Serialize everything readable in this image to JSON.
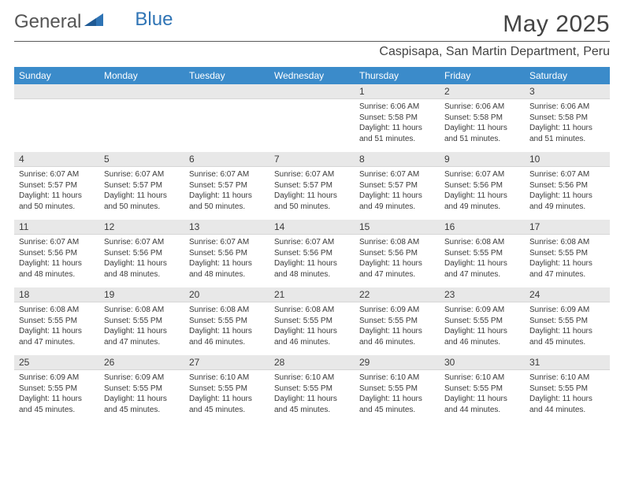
{
  "brand": {
    "part1": "General",
    "part2": "Blue"
  },
  "title": "May 2025",
  "location": "Caspisapa, San Martin Department, Peru",
  "colors": {
    "header_bg": "#3b8bca",
    "header_text": "#ffffff",
    "daynum_bg": "#e8e8e8",
    "text": "#3a3a3a",
    "rule": "#5a5a5a",
    "brand_blue": "#2f74b5"
  },
  "day_headers": [
    "Sunday",
    "Monday",
    "Tuesday",
    "Wednesday",
    "Thursday",
    "Friday",
    "Saturday"
  ],
  "weeks": [
    [
      null,
      null,
      null,
      null,
      {
        "n": "1",
        "sr": "6:06 AM",
        "ss": "5:58 PM",
        "dl": "11 hours and 51 minutes."
      },
      {
        "n": "2",
        "sr": "6:06 AM",
        "ss": "5:58 PM",
        "dl": "11 hours and 51 minutes."
      },
      {
        "n": "3",
        "sr": "6:06 AM",
        "ss": "5:58 PM",
        "dl": "11 hours and 51 minutes."
      }
    ],
    [
      {
        "n": "4",
        "sr": "6:07 AM",
        "ss": "5:57 PM",
        "dl": "11 hours and 50 minutes."
      },
      {
        "n": "5",
        "sr": "6:07 AM",
        "ss": "5:57 PM",
        "dl": "11 hours and 50 minutes."
      },
      {
        "n": "6",
        "sr": "6:07 AM",
        "ss": "5:57 PM",
        "dl": "11 hours and 50 minutes."
      },
      {
        "n": "7",
        "sr": "6:07 AM",
        "ss": "5:57 PM",
        "dl": "11 hours and 50 minutes."
      },
      {
        "n": "8",
        "sr": "6:07 AM",
        "ss": "5:57 PM",
        "dl": "11 hours and 49 minutes."
      },
      {
        "n": "9",
        "sr": "6:07 AM",
        "ss": "5:56 PM",
        "dl": "11 hours and 49 minutes."
      },
      {
        "n": "10",
        "sr": "6:07 AM",
        "ss": "5:56 PM",
        "dl": "11 hours and 49 minutes."
      }
    ],
    [
      {
        "n": "11",
        "sr": "6:07 AM",
        "ss": "5:56 PM",
        "dl": "11 hours and 48 minutes."
      },
      {
        "n": "12",
        "sr": "6:07 AM",
        "ss": "5:56 PM",
        "dl": "11 hours and 48 minutes."
      },
      {
        "n": "13",
        "sr": "6:07 AM",
        "ss": "5:56 PM",
        "dl": "11 hours and 48 minutes."
      },
      {
        "n": "14",
        "sr": "6:07 AM",
        "ss": "5:56 PM",
        "dl": "11 hours and 48 minutes."
      },
      {
        "n": "15",
        "sr": "6:08 AM",
        "ss": "5:56 PM",
        "dl": "11 hours and 47 minutes."
      },
      {
        "n": "16",
        "sr": "6:08 AM",
        "ss": "5:55 PM",
        "dl": "11 hours and 47 minutes."
      },
      {
        "n": "17",
        "sr": "6:08 AM",
        "ss": "5:55 PM",
        "dl": "11 hours and 47 minutes."
      }
    ],
    [
      {
        "n": "18",
        "sr": "6:08 AM",
        "ss": "5:55 PM",
        "dl": "11 hours and 47 minutes."
      },
      {
        "n": "19",
        "sr": "6:08 AM",
        "ss": "5:55 PM",
        "dl": "11 hours and 47 minutes."
      },
      {
        "n": "20",
        "sr": "6:08 AM",
        "ss": "5:55 PM",
        "dl": "11 hours and 46 minutes."
      },
      {
        "n": "21",
        "sr": "6:08 AM",
        "ss": "5:55 PM",
        "dl": "11 hours and 46 minutes."
      },
      {
        "n": "22",
        "sr": "6:09 AM",
        "ss": "5:55 PM",
        "dl": "11 hours and 46 minutes."
      },
      {
        "n": "23",
        "sr": "6:09 AM",
        "ss": "5:55 PM",
        "dl": "11 hours and 46 minutes."
      },
      {
        "n": "24",
        "sr": "6:09 AM",
        "ss": "5:55 PM",
        "dl": "11 hours and 45 minutes."
      }
    ],
    [
      {
        "n": "25",
        "sr": "6:09 AM",
        "ss": "5:55 PM",
        "dl": "11 hours and 45 minutes."
      },
      {
        "n": "26",
        "sr": "6:09 AM",
        "ss": "5:55 PM",
        "dl": "11 hours and 45 minutes."
      },
      {
        "n": "27",
        "sr": "6:10 AM",
        "ss": "5:55 PM",
        "dl": "11 hours and 45 minutes."
      },
      {
        "n": "28",
        "sr": "6:10 AM",
        "ss": "5:55 PM",
        "dl": "11 hours and 45 minutes."
      },
      {
        "n": "29",
        "sr": "6:10 AM",
        "ss": "5:55 PM",
        "dl": "11 hours and 45 minutes."
      },
      {
        "n": "30",
        "sr": "6:10 AM",
        "ss": "5:55 PM",
        "dl": "11 hours and 44 minutes."
      },
      {
        "n": "31",
        "sr": "6:10 AM",
        "ss": "5:55 PM",
        "dl": "11 hours and 44 minutes."
      }
    ]
  ],
  "labels": {
    "sunrise": "Sunrise: ",
    "sunset": "Sunset: ",
    "daylight": "Daylight: "
  }
}
